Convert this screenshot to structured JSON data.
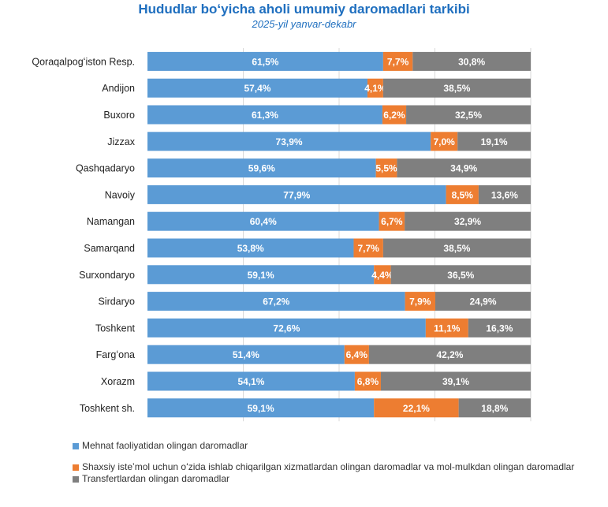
{
  "title": "Hududlar boʻyicha aholi umumiy daromadlari tarkibi",
  "subtitle": "2025-yil yanvar-dekabr",
  "colors": {
    "s1": "#5b9bd5",
    "s2": "#ed7d31",
    "s3": "#7f7f7f",
    "title": "#1f6fbf",
    "grid": "#d9d9d9"
  },
  "chart_data": {
    "type": "bar",
    "orientation": "horizontal",
    "stacked": true,
    "xlim": [
      0,
      100
    ],
    "grid": true,
    "legend_position": "bottom",
    "categories": [
      "Qoraqalpogʻiston Resp.",
      "Andijon",
      "Buxoro",
      "Jizzax",
      "Qashqadaryo",
      "Navoiy",
      "Namangan",
      "Samarqand",
      "Surxondaryo",
      "Sirdaryo",
      "Toshkent",
      "Fargʻona",
      "Xorazm",
      "Toshkent sh."
    ],
    "series": [
      {
        "name": "Mehnat faoliyatidan olingan daromadlar",
        "values": [
          61.5,
          57.4,
          61.3,
          73.9,
          59.6,
          77.9,
          60.4,
          53.8,
          59.1,
          67.2,
          72.6,
          51.4,
          54.1,
          59.1
        ],
        "labels": [
          "61,5%",
          "57,4%",
          "61,3%",
          "73,9%",
          "59,6%",
          "77,9%",
          "60,4%",
          "53,8%",
          "59,1%",
          "67,2%",
          "72,6%",
          "51,4%",
          "54,1%",
          "59,1%"
        ]
      },
      {
        "name": "Shaxsiy isteʼmol uchun oʻzida ishlab chiqarilgan xizmatlardan olingan daromadlar va mol-mulkdan olingan daromadlar",
        "values": [
          7.7,
          4.1,
          6.2,
          7.0,
          5.5,
          8.5,
          6.7,
          7.7,
          4.4,
          7.9,
          11.1,
          6.4,
          6.8,
          22.1
        ],
        "labels": [
          "7,7%",
          "4,1%",
          "6,2%",
          "7,0%",
          "5,5%",
          "8,5%",
          "6,7%",
          "7,7%",
          "4,4%",
          "7,9%",
          "11,1%",
          "6,4%",
          "6,8%",
          "22,1%"
        ]
      },
      {
        "name": "Transfertlardan olingan daromadlar",
        "values": [
          30.8,
          38.5,
          32.5,
          19.1,
          34.9,
          13.6,
          32.9,
          38.5,
          36.5,
          24.9,
          16.3,
          42.2,
          39.1,
          18.8
        ],
        "labels": [
          "30,8%",
          "38,5%",
          "32,5%",
          "19,1%",
          "34,9%",
          "13,6%",
          "32,9%",
          "38,5%",
          "36,5%",
          "24,9%",
          "16,3%",
          "42,2%",
          "39,1%",
          "18,8%"
        ]
      }
    ]
  }
}
